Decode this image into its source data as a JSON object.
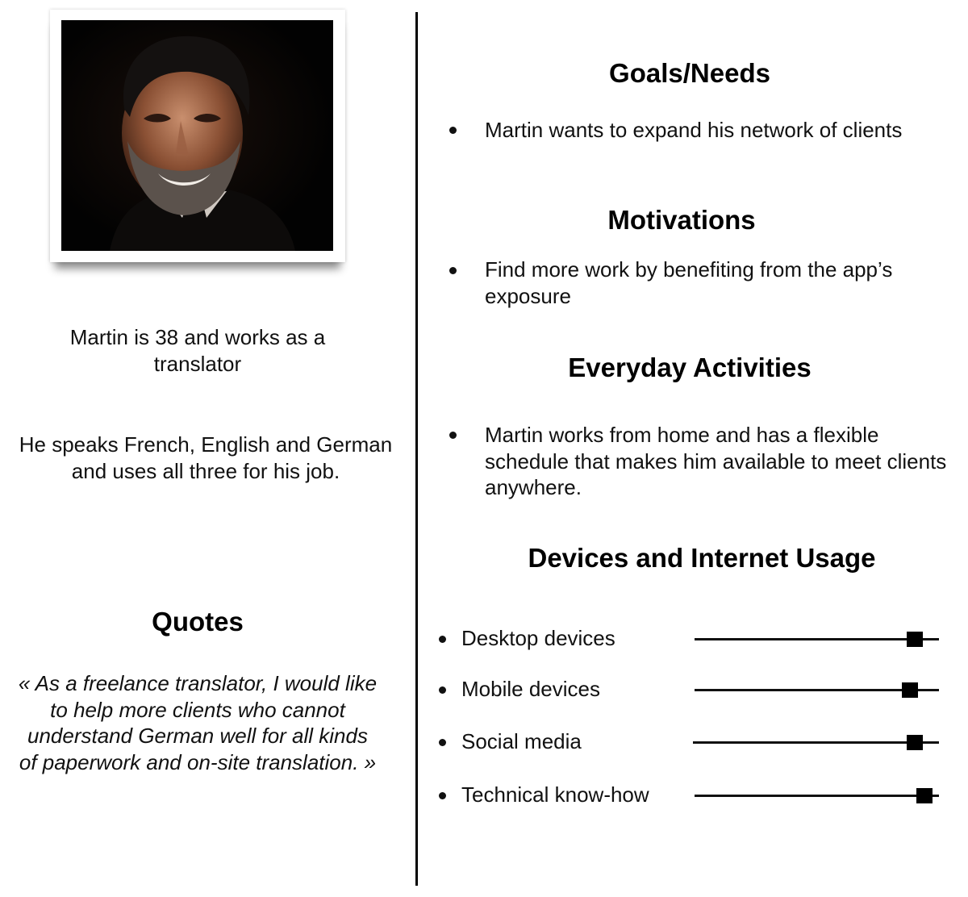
{
  "left": {
    "bio_age": "Martin is 38 and works as a translator",
    "bio_languages": "He speaks French, English and German and uses all three for his job.",
    "quotes_title": "Quotes",
    "quote": "« As a freelance translator, I would like to help more clients who cannot understand German well for all kinds of paperwork and on-site translation. »"
  },
  "right": {
    "goals_title": "Goals/Needs",
    "goals_item": "Martin wants to expand his network of clients",
    "motivations_title": "Motivations",
    "motivations_item": "Find more work by benefiting from the app’s exposure",
    "activities_title": "Everyday Activities",
    "activities_item": "Martin works from home and has a flexible schedule that makes him available to meet clients anywhere.",
    "devices_title": "Devices and Internet Usage",
    "devices": [
      {
        "label": "Desktop devices",
        "level": 0.9
      },
      {
        "label": "Mobile devices",
        "level": 0.88
      },
      {
        "label": "Social media",
        "level": 0.9
      },
      {
        "label": "Technical know-how",
        "level": 0.94
      }
    ]
  },
  "colors": {
    "text": "#111111",
    "divider": "#000000",
    "photo_background": "#020202"
  }
}
